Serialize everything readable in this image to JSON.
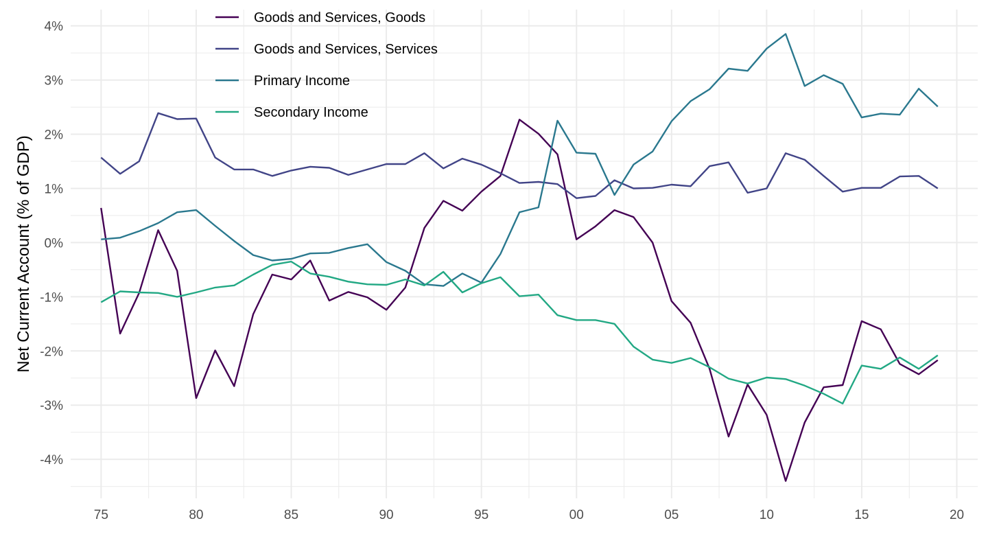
{
  "chart_data": {
    "type": "line",
    "title": "",
    "xlabel": "",
    "ylabel": "Net Current Account (% of GDP)",
    "xlim": [
      1973.4,
      2021.1
    ],
    "ylim": [
      -4.72,
      4.3
    ],
    "grid": true,
    "legend_position": "top-left",
    "x_ticks": [
      {
        "value": 1975,
        "label": "75"
      },
      {
        "value": 1980,
        "label": "80"
      },
      {
        "value": 1985,
        "label": "85"
      },
      {
        "value": 1990,
        "label": "90"
      },
      {
        "value": 1995,
        "label": "95"
      },
      {
        "value": 2000,
        "label": "00"
      },
      {
        "value": 2005,
        "label": "05"
      },
      {
        "value": 2010,
        "label": "10"
      },
      {
        "value": 2015,
        "label": "15"
      },
      {
        "value": 2020,
        "label": "20"
      }
    ],
    "y_ticks": [
      {
        "value": 4,
        "label": "4%"
      },
      {
        "value": 3,
        "label": "3%"
      },
      {
        "value": 2,
        "label": "2%"
      },
      {
        "value": 1,
        "label": "1%"
      },
      {
        "value": 0,
        "label": "0%"
      },
      {
        "value": -1,
        "label": "-1%"
      },
      {
        "value": -2,
        "label": "-2%"
      },
      {
        "value": -3,
        "label": "-3%"
      },
      {
        "value": -4,
        "label": "-4%"
      }
    ],
    "x": [
      1975,
      1976,
      1977,
      1978,
      1979,
      1980,
      1981,
      1982,
      1983,
      1984,
      1985,
      1986,
      1987,
      1988,
      1989,
      1990,
      1991,
      1992,
      1993,
      1994,
      1995,
      1996,
      1997,
      1998,
      1999,
      2000,
      2001,
      2002,
      2003,
      2004,
      2005,
      2006,
      2007,
      2008,
      2009,
      2010,
      2011,
      2012,
      2013,
      2014,
      2015,
      2016,
      2017,
      2018,
      2019
    ],
    "series": [
      {
        "name": "Goods and Services, Goods",
        "color": "#440154",
        "values": [
          0.64,
          -1.68,
          -0.93,
          0.23,
          -0.52,
          -2.87,
          -1.99,
          -2.65,
          -1.32,
          -0.59,
          -0.68,
          -0.33,
          -1.07,
          -0.91,
          -1.01,
          -1.24,
          -0.83,
          0.27,
          0.77,
          0.59,
          0.94,
          1.23,
          2.27,
          2.01,
          1.63,
          0.06,
          0.3,
          0.6,
          0.47,
          0.0,
          -1.08,
          -1.48,
          -2.33,
          -3.58,
          -2.62,
          -3.18,
          -4.4,
          -3.32,
          -2.67,
          -2.63,
          -1.45,
          -1.6,
          -2.24,
          -2.43,
          -2.17
        ]
      },
      {
        "name": "Goods and Services, Services",
        "color": "#414487",
        "values": [
          1.57,
          1.27,
          1.5,
          2.39,
          2.28,
          2.29,
          1.57,
          1.35,
          1.35,
          1.23,
          1.33,
          1.4,
          1.38,
          1.25,
          1.35,
          1.45,
          1.45,
          1.65,
          1.37,
          1.55,
          1.44,
          1.28,
          1.1,
          1.12,
          1.08,
          0.82,
          0.86,
          1.15,
          1.0,
          1.01,
          1.07,
          1.04,
          1.41,
          1.48,
          0.92,
          1.0,
          1.65,
          1.53,
          1.23,
          0.94,
          1.01,
          1.01,
          1.22,
          1.23,
          1.0
        ]
      },
      {
        "name": "Primary Income",
        "color": "#2a788e",
        "values": [
          0.06,
          0.09,
          0.21,
          0.36,
          0.56,
          0.6,
          0.31,
          0.03,
          -0.23,
          -0.33,
          -0.3,
          -0.2,
          -0.19,
          -0.1,
          -0.03,
          -0.36,
          -0.52,
          -0.77,
          -0.8,
          -0.57,
          -0.74,
          -0.21,
          0.56,
          0.65,
          2.25,
          1.66,
          1.64,
          0.88,
          1.44,
          1.68,
          2.24,
          2.61,
          2.83,
          3.21,
          3.17,
          3.58,
          3.85,
          2.89,
          3.09,
          2.93,
          2.31,
          2.38,
          2.36,
          2.84,
          2.51
        ]
      },
      {
        "name": "Secondary Income",
        "color": "#22a884",
        "values": [
          -1.1,
          -0.9,
          -0.92,
          -0.93,
          -1.0,
          -0.92,
          -0.83,
          -0.79,
          -0.59,
          -0.41,
          -0.35,
          -0.57,
          -0.63,
          -0.72,
          -0.77,
          -0.78,
          -0.68,
          -0.79,
          -0.54,
          -0.92,
          -0.75,
          -0.64,
          -0.99,
          -0.96,
          -1.34,
          -1.43,
          -1.43,
          -1.5,
          -1.92,
          -2.16,
          -2.22,
          -2.13,
          -2.3,
          -2.51,
          -2.6,
          -2.49,
          -2.52,
          -2.64,
          -2.79,
          -2.97,
          -2.27,
          -2.33,
          -2.12,
          -2.33,
          -2.08
        ]
      }
    ]
  }
}
